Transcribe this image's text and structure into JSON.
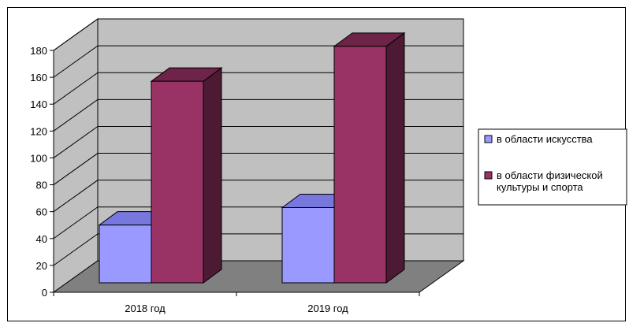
{
  "chart_data": {
    "type": "bar",
    "title": "",
    "xlabel": "",
    "ylabel": "",
    "categories": [
      "2018 год",
      "2019 год"
    ],
    "series": [
      {
        "name": "в области искусства",
        "values": [
          43,
          56
        ],
        "color": "#9999ff",
        "side_color": "#5a5acc",
        "top_color": "#7777dd"
      },
      {
        "name": "в области физической культуры и спорта",
        "values": [
          150,
          176
        ],
        "color": "#993366",
        "side_color": "#4d1a33",
        "top_color": "#6e2448"
      }
    ],
    "legend_lines": [
      [
        "в области искусства"
      ],
      [
        "в области физической",
        "культуры и спорта"
      ]
    ],
    "ylim": [
      0,
      180
    ],
    "yticks": [
      0,
      20,
      40,
      60,
      80,
      100,
      120,
      140,
      160,
      180
    ],
    "grid": true,
    "legend_position": "right",
    "wall_color": "#c0c0c0",
    "floor_color": "#808080"
  }
}
